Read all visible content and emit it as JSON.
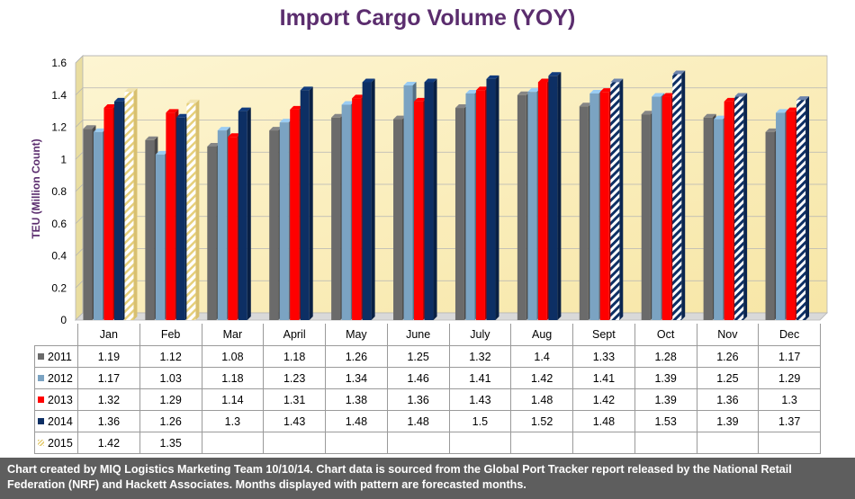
{
  "chart_data": {
    "type": "bar",
    "title": "Import Cargo Volume (YOY)",
    "ylabel": "TEU (Million Count)",
    "ylim": [
      0,
      1.6
    ],
    "yticks": [
      "0",
      "0.2",
      "0.4",
      "0.6",
      "0.8",
      "1",
      "1.2",
      "1.4",
      "1.6"
    ],
    "grid": true,
    "categories": [
      "Jan",
      "Feb",
      "Mar",
      "April",
      "May",
      "June",
      "July",
      "Aug",
      "Sept",
      "Oct",
      "Nov",
      "Dec"
    ],
    "series": [
      {
        "name": "2011",
        "color": "#6b6b6b",
        "values": [
          1.19,
          1.12,
          1.08,
          1.18,
          1.26,
          1.25,
          1.32,
          1.4,
          1.33,
          1.28,
          1.26,
          1.17
        ]
      },
      {
        "name": "2012",
        "color": "#7ba3c2",
        "values": [
          1.17,
          1.03,
          1.18,
          1.23,
          1.34,
          1.46,
          1.41,
          1.42,
          1.41,
          1.39,
          1.25,
          1.29
        ]
      },
      {
        "name": "2013",
        "color": "#ff0000",
        "values": [
          1.32,
          1.29,
          1.14,
          1.31,
          1.38,
          1.36,
          1.43,
          1.48,
          1.42,
          1.39,
          1.36,
          1.3
        ]
      },
      {
        "name": "2014",
        "color": "#0d2f64",
        "values": [
          1.36,
          1.26,
          1.3,
          1.43,
          1.48,
          1.48,
          1.5,
          1.52,
          1.48,
          1.53,
          1.39,
          1.37
        ],
        "forecast_months": [
          "Sept",
          "Oct",
          "Nov",
          "Dec"
        ],
        "forecast_pattern": "navy-white diagonal stripes"
      },
      {
        "name": "2015",
        "color": "#e6cf7a",
        "pattern": "yellow-white diagonal stripes",
        "values": [
          1.42,
          1.35,
          null,
          null,
          null,
          null,
          null,
          null,
          null,
          null,
          null,
          null
        ]
      }
    ],
    "table": {
      "display_values": [
        [
          "1.19",
          "1.12",
          "1.08",
          "1.18",
          "1.26",
          "1.25",
          "1.32",
          "1.4",
          "1.33",
          "1.28",
          "1.26",
          "1.17"
        ],
        [
          "1.17",
          "1.03",
          "1.18",
          "1.23",
          "1.34",
          "1.46",
          "1.41",
          "1.42",
          "1.41",
          "1.39",
          "1.25",
          "1.29"
        ],
        [
          "1.32",
          "1.29",
          "1.14",
          "1.31",
          "1.38",
          "1.36",
          "1.43",
          "1.48",
          "1.42",
          "1.39",
          "1.36",
          "1.3"
        ],
        [
          "1.36",
          "1.26",
          "1.3",
          "1.43",
          "1.48",
          "1.48",
          "1.5",
          "1.52",
          "1.48",
          "1.53",
          "1.39",
          "1.37"
        ],
        [
          "1.42",
          "1.35",
          "",
          "",
          "",
          "",
          "",
          "",
          "",
          "",
          "",
          ""
        ]
      ]
    },
    "plot_background": "#fdf2c4"
  },
  "footer": {
    "note": "Chart created by MIQ Logistics Marketing Team 10/10/14. Chart data is sourced from the Global Port Tracker report released by the National Retail Federation (NRF) and Hackett Associates.  Months displayed with pattern are forecasted months."
  }
}
